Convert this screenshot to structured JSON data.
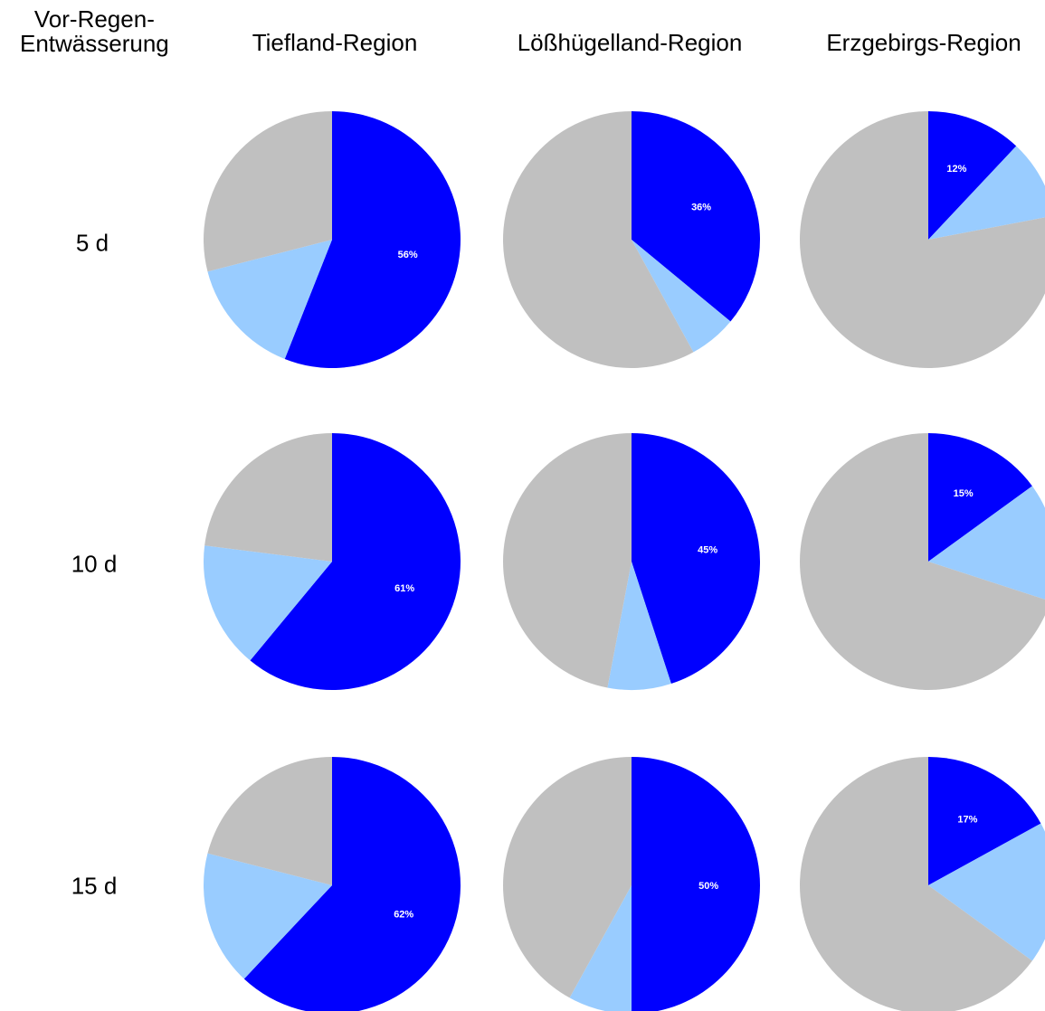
{
  "row_header": [
    "Vor-Regen-",
    "Entwässerung"
  ],
  "columns": [
    "Tiefland-Region",
    "Lößhügelland-Region",
    "Erzgebirgs-Region"
  ],
  "rows": [
    "5 d",
    "10 d",
    "15 d"
  ],
  "colors": {
    "dark_blue": "#0000ff",
    "light_blue": "#99ccff",
    "grey": "#c0c0c0",
    "label_text": "#ffffff"
  },
  "chart_data": {
    "type": "pie",
    "slice_order": [
      "dark_blue",
      "light_blue",
      "grey"
    ],
    "pies": [
      {
        "row": "5 d",
        "column": "Tiefland-Region",
        "values": [
          56,
          15,
          29
        ],
        "label": "56%"
      },
      {
        "row": "5 d",
        "column": "Lößhügelland-Region",
        "values": [
          36,
          6,
          58
        ],
        "label": "36%"
      },
      {
        "row": "5 d",
        "column": "Erzgebirgs-Region",
        "values": [
          12,
          10,
          78
        ],
        "label": "12%"
      },
      {
        "row": "10 d",
        "column": "Tiefland-Region",
        "values": [
          61,
          16,
          23
        ],
        "label": "61%"
      },
      {
        "row": "10 d",
        "column": "Lößhügelland-Region",
        "values": [
          45,
          8,
          47
        ],
        "label": "45%"
      },
      {
        "row": "10 d",
        "column": "Erzgebirgs-Region",
        "values": [
          15,
          15,
          70
        ],
        "label": "15%"
      },
      {
        "row": "15 d",
        "column": "Tiefland-Region",
        "values": [
          62,
          17,
          21
        ],
        "label": "62%"
      },
      {
        "row": "15 d",
        "column": "Lößhügelland-Region",
        "values": [
          50,
          8,
          42
        ],
        "label": "50%"
      },
      {
        "row": "15 d",
        "column": "Erzgebirgs-Region",
        "values": [
          17,
          18,
          65
        ],
        "label": "17%"
      }
    ]
  }
}
